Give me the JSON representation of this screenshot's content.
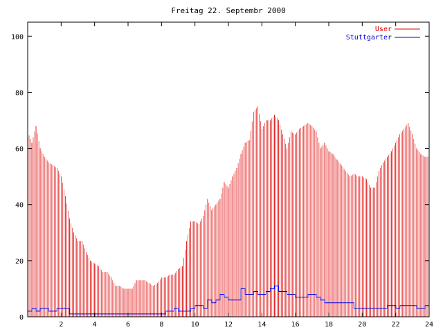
{
  "chart_data": {
    "type": "bar",
    "title": "Freitag 22. Septembr 2000",
    "xlabel": "",
    "ylabel": "",
    "xlim": [
      0,
      24
    ],
    "ylim": [
      0,
      105
    ],
    "x_ticks": [
      2,
      4,
      6,
      8,
      10,
      12,
      14,
      16,
      18,
      20,
      22,
      24
    ],
    "y_ticks": [
      0,
      20,
      40,
      60,
      80,
      100
    ],
    "grid": false,
    "legend_position": "top-right",
    "series": [
      {
        "name": "User",
        "type": "bar",
        "color": "#e00000",
        "points": [
          [
            0.0,
            66
          ],
          [
            0.25,
            62
          ],
          [
            0.5,
            68
          ],
          [
            0.75,
            60
          ],
          [
            1.0,
            57
          ],
          [
            1.25,
            55
          ],
          [
            1.5,
            54
          ],
          [
            1.75,
            53
          ],
          [
            2.0,
            50
          ],
          [
            2.25,
            43
          ],
          [
            2.5,
            35
          ],
          [
            2.75,
            30
          ],
          [
            3.0,
            27
          ],
          [
            3.25,
            27
          ],
          [
            3.5,
            23
          ],
          [
            3.75,
            20
          ],
          [
            4.0,
            19
          ],
          [
            4.25,
            18
          ],
          [
            4.5,
            16
          ],
          [
            4.75,
            16
          ],
          [
            5.0,
            14
          ],
          [
            5.25,
            11
          ],
          [
            5.5,
            11
          ],
          [
            5.75,
            10
          ],
          [
            6.0,
            10
          ],
          [
            6.25,
            10
          ],
          [
            6.5,
            13
          ],
          [
            6.75,
            13
          ],
          [
            7.0,
            13
          ],
          [
            7.25,
            12
          ],
          [
            7.5,
            11
          ],
          [
            7.75,
            12
          ],
          [
            8.0,
            14
          ],
          [
            8.25,
            14
          ],
          [
            8.5,
            15
          ],
          [
            8.75,
            15
          ],
          [
            9.0,
            17
          ],
          [
            9.25,
            18
          ],
          [
            9.5,
            27
          ],
          [
            9.75,
            34
          ],
          [
            10.0,
            34
          ],
          [
            10.25,
            33
          ],
          [
            10.5,
            36
          ],
          [
            10.75,
            42
          ],
          [
            11.0,
            38
          ],
          [
            11.25,
            40
          ],
          [
            11.5,
            42
          ],
          [
            11.75,
            48
          ],
          [
            12.0,
            46
          ],
          [
            12.25,
            50
          ],
          [
            12.5,
            53
          ],
          [
            12.75,
            58
          ],
          [
            13.0,
            62
          ],
          [
            13.25,
            63
          ],
          [
            13.5,
            73
          ],
          [
            13.75,
            75
          ],
          [
            14.0,
            67
          ],
          [
            14.25,
            70
          ],
          [
            14.5,
            70
          ],
          [
            14.75,
            72
          ],
          [
            15.0,
            70
          ],
          [
            15.25,
            65
          ],
          [
            15.5,
            60
          ],
          [
            15.75,
            66
          ],
          [
            16.0,
            65
          ],
          [
            16.25,
            67
          ],
          [
            16.5,
            68
          ],
          [
            16.75,
            69
          ],
          [
            17.0,
            68
          ],
          [
            17.25,
            66
          ],
          [
            17.5,
            60
          ],
          [
            17.75,
            62
          ],
          [
            18.0,
            59
          ],
          [
            18.25,
            58
          ],
          [
            18.5,
            56
          ],
          [
            18.75,
            54
          ],
          [
            19.0,
            52
          ],
          [
            19.25,
            50
          ],
          [
            19.5,
            51
          ],
          [
            19.75,
            50
          ],
          [
            20.0,
            50
          ],
          [
            20.25,
            49
          ],
          [
            20.5,
            46
          ],
          [
            20.75,
            46
          ],
          [
            21.0,
            52
          ],
          [
            21.25,
            55
          ],
          [
            21.5,
            57
          ],
          [
            21.75,
            59
          ],
          [
            22.0,
            62
          ],
          [
            22.25,
            65
          ],
          [
            22.5,
            67
          ],
          [
            22.75,
            69
          ],
          [
            23.0,
            65
          ],
          [
            23.25,
            60
          ],
          [
            23.5,
            58
          ],
          [
            23.75,
            57
          ]
        ]
      },
      {
        "name": "Stuttgarter",
        "type": "line",
        "color": "#0000e0",
        "points": [
          [
            0.0,
            2
          ],
          [
            0.25,
            3
          ],
          [
            0.5,
            2
          ],
          [
            0.75,
            3
          ],
          [
            1.0,
            3
          ],
          [
            1.25,
            2
          ],
          [
            1.5,
            2
          ],
          [
            1.75,
            3
          ],
          [
            2.0,
            3
          ],
          [
            2.25,
            3
          ],
          [
            2.5,
            1
          ],
          [
            2.75,
            1
          ],
          [
            3.0,
            1
          ],
          [
            3.25,
            1
          ],
          [
            3.5,
            1
          ],
          [
            3.75,
            1
          ],
          [
            4.0,
            1
          ],
          [
            4.25,
            1
          ],
          [
            4.5,
            1
          ],
          [
            4.75,
            1
          ],
          [
            5.0,
            1
          ],
          [
            5.25,
            1
          ],
          [
            5.5,
            1
          ],
          [
            5.75,
            1
          ],
          [
            6.0,
            1
          ],
          [
            6.25,
            1
          ],
          [
            6.5,
            1
          ],
          [
            6.75,
            1
          ],
          [
            7.0,
            1
          ],
          [
            7.25,
            1
          ],
          [
            7.5,
            1
          ],
          [
            7.75,
            1
          ],
          [
            8.0,
            1
          ],
          [
            8.25,
            2
          ],
          [
            8.5,
            2
          ],
          [
            8.75,
            3
          ],
          [
            9.0,
            2
          ],
          [
            9.25,
            2
          ],
          [
            9.5,
            2
          ],
          [
            9.75,
            3
          ],
          [
            10.0,
            4
          ],
          [
            10.25,
            4
          ],
          [
            10.5,
            3
          ],
          [
            10.75,
            6
          ],
          [
            11.0,
            5
          ],
          [
            11.25,
            6
          ],
          [
            11.5,
            8
          ],
          [
            11.75,
            7
          ],
          [
            12.0,
            6
          ],
          [
            12.25,
            6
          ],
          [
            12.5,
            6
          ],
          [
            12.75,
            10
          ],
          [
            13.0,
            8
          ],
          [
            13.25,
            8
          ],
          [
            13.5,
            9
          ],
          [
            13.75,
            8
          ],
          [
            14.0,
            8
          ],
          [
            14.25,
            9
          ],
          [
            14.5,
            10
          ],
          [
            14.75,
            11
          ],
          [
            15.0,
            9
          ],
          [
            15.25,
            9
          ],
          [
            15.5,
            8
          ],
          [
            15.75,
            8
          ],
          [
            16.0,
            7
          ],
          [
            16.25,
            7
          ],
          [
            16.5,
            7
          ],
          [
            16.75,
            8
          ],
          [
            17.0,
            8
          ],
          [
            17.25,
            7
          ],
          [
            17.5,
            6
          ],
          [
            17.75,
            5
          ],
          [
            18.0,
            5
          ],
          [
            18.25,
            5
          ],
          [
            18.5,
            5
          ],
          [
            18.75,
            5
          ],
          [
            19.0,
            5
          ],
          [
            19.25,
            5
          ],
          [
            19.5,
            3
          ],
          [
            19.75,
            3
          ],
          [
            20.0,
            3
          ],
          [
            20.25,
            3
          ],
          [
            20.5,
            3
          ],
          [
            20.75,
            3
          ],
          [
            21.0,
            3
          ],
          [
            21.25,
            3
          ],
          [
            21.5,
            4
          ],
          [
            21.75,
            4
          ],
          [
            22.0,
            3
          ],
          [
            22.25,
            4
          ],
          [
            22.5,
            4
          ],
          [
            22.75,
            4
          ],
          [
            23.0,
            4
          ],
          [
            23.25,
            3
          ],
          [
            23.5,
            3
          ],
          [
            23.75,
            4
          ]
        ]
      }
    ]
  }
}
